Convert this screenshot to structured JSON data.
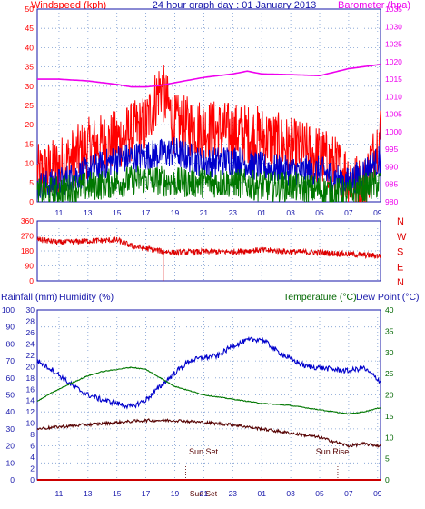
{
  "header": {
    "wind_label": "Windspeed (kph)",
    "title": "24 hour graph day : 01 January 2013",
    "baro_label": "Barometer (hpa)"
  },
  "bottom_labels": {
    "rain": "Rainfall (mm)",
    "humidity": "Humidity (%)",
    "temp": "Temperature (°C)",
    "dew": "Dew Point (°C)"
  },
  "annotations": {
    "sunset": "Sun Set",
    "sunrise": "Sun Rise",
    "sunset_short": "Sun Set"
  },
  "colors": {
    "wind": "#ff0000",
    "gust_blue": "#0000cc",
    "avg_green": "#007700",
    "baro": "#ee00ee",
    "dir": "#dd0000",
    "humidity": "#0000cc",
    "temp": "#007700",
    "dew": "#550000",
    "rain": "#cc0000",
    "axis_blue": "#1515aa",
    "axis_green": "#006600"
  },
  "chart_data": [
    {
      "type": "line",
      "id": "wind-baro",
      "title": "24 hour graph day : 01 January 2013",
      "x_ticks": [
        "11",
        "13",
        "15",
        "17",
        "19",
        "21",
        "23",
        "01",
        "03",
        "05",
        "07",
        "09"
      ],
      "y_left": {
        "label": "Windspeed (kph)",
        "ticks": [
          0,
          5,
          10,
          15,
          20,
          25,
          30,
          35,
          40,
          45,
          50
        ],
        "range": [
          0,
          50
        ]
      },
      "y_right": {
        "label": "Barometer (hpa)",
        "ticks": [
          980,
          985,
          990,
          995,
          1000,
          1005,
          1010,
          1015,
          1020,
          1025,
          1030,
          1035
        ],
        "range": [
          980,
          1035
        ]
      },
      "grid": true,
      "series": [
        {
          "name": "Windspeed (kph)",
          "color": "#ff0000",
          "x": [
            9.5,
            11,
            13,
            15,
            17,
            18,
            19,
            21,
            23,
            25,
            27,
            29,
            31,
            32,
            33.2
          ],
          "values": [
            7,
            9,
            14,
            16,
            20,
            30,
            20,
            19,
            18,
            17,
            14,
            12,
            7,
            3,
            18
          ],
          "noise": 8
        },
        {
          "color": "#0000cc",
          "x": [
            9.5,
            11,
            13,
            15,
            17,
            19,
            21,
            23,
            25,
            27,
            29,
            31,
            33.2
          ],
          "values": [
            4,
            5,
            8,
            11,
            12,
            13,
            10,
            11,
            9,
            8,
            8,
            5,
            11
          ],
          "noise": 4
        },
        {
          "color": "#007700",
          "x": [
            9.5,
            11,
            13,
            15,
            17,
            19,
            21,
            23,
            25,
            27,
            29,
            31,
            33.2
          ],
          "values": [
            2,
            3,
            4,
            5,
            6,
            5,
            5,
            5,
            4,
            4,
            3,
            2,
            5
          ],
          "noise": 4
        },
        {
          "name": "Barometer (hpa)",
          "color": "#ee00ee",
          "axis": "right",
          "x": [
            9.5,
            11,
            13,
            15,
            16,
            17,
            18,
            19,
            21,
            23,
            24,
            25,
            27,
            29,
            31,
            33.2
          ],
          "values": [
            1015,
            1015,
            1014.5,
            1013.5,
            1012.8,
            1012.8,
            1013.2,
            1014,
            1015.5,
            1016.5,
            1017.3,
            1016.5,
            1016.3,
            1016,
            1018,
            1019.2
          ],
          "noise": 0
        }
      ]
    },
    {
      "type": "scatter",
      "id": "wind-direction",
      "x_ticks": [
        "11",
        "13",
        "15",
        "17",
        "19",
        "21",
        "23",
        "01",
        "03",
        "05",
        "07",
        "09"
      ],
      "y_left": {
        "ticks": [
          0,
          90,
          180,
          270,
          360
        ],
        "range": [
          0,
          360
        ]
      },
      "y_right_labels": [
        "N",
        "W",
        "S",
        "E",
        "N"
      ],
      "grid": true,
      "series": [
        {
          "color": "#dd0000",
          "x": [
            9.5,
            11,
            13,
            15,
            16,
            17,
            18,
            19,
            21,
            23,
            25,
            27,
            29,
            31,
            33.2
          ],
          "values": [
            250,
            230,
            240,
            245,
            210,
            195,
            180,
            170,
            175,
            175,
            185,
            175,
            170,
            160,
            150
          ],
          "noise": 18
        }
      ],
      "spike": {
        "x": 18.2,
        "to": 0
      }
    },
    {
      "type": "line",
      "id": "temp-humidity-rain",
      "x_ticks": [
        "11",
        "13",
        "15",
        "17",
        "19",
        "21",
        "23",
        "01",
        "03",
        "05",
        "07",
        "09"
      ],
      "y_humidity": {
        "label": "Humidity (%)",
        "ticks": [
          0,
          10,
          20,
          30,
          40,
          50,
          60,
          70,
          80,
          90,
          100
        ],
        "range": [
          0,
          100
        ]
      },
      "y_rain": {
        "label": "Rainfall (mm)",
        "ticks": [
          0,
          2,
          4,
          6,
          8,
          10,
          12,
          14,
          16,
          18,
          20,
          22,
          24,
          26,
          28,
          30
        ],
        "range": [
          0,
          30
        ]
      },
      "y_temp": {
        "label": "Temperature (°C)",
        "ticks": [
          0,
          5,
          10,
          15,
          20,
          25,
          30,
          35,
          40
        ],
        "range": [
          0,
          40
        ]
      },
      "grid": true,
      "series": [
        {
          "name": "Humidity (%)",
          "color": "#0000cc",
          "x": [
            9.5,
            10.5,
            12,
            13,
            14,
            15,
            16,
            17,
            18,
            19,
            20,
            21,
            22,
            23,
            24,
            25,
            26,
            27,
            28,
            29,
            30,
            31,
            32,
            33.2
          ],
          "values": [
            70,
            65,
            55,
            50,
            47,
            45,
            43,
            47,
            55,
            63,
            70,
            72,
            73,
            79,
            82,
            83,
            76,
            71,
            67,
            66,
            65,
            64,
            66,
            58
          ],
          "noise": 1.6
        },
        {
          "name": "Temperature (°C)",
          "color": "#007700",
          "x": [
            9.5,
            10.5,
            12,
            13,
            14,
            15,
            16,
            17,
            18,
            19,
            20,
            21,
            22,
            23,
            25,
            27,
            29,
            31,
            32,
            33.2
          ],
          "values": [
            18.5,
            20.5,
            23,
            24.5,
            25.5,
            26,
            26.5,
            26,
            24,
            22,
            21,
            20,
            19.5,
            19,
            18,
            17.5,
            16.5,
            15.5,
            16,
            17
          ],
          "noise": 0.1
        },
        {
          "name": "Dew Point (°C)",
          "color": "#550000",
          "x": [
            9.5,
            11,
            13,
            15,
            17,
            19,
            21,
            23,
            25,
            27,
            29,
            31,
            32,
            33.2
          ],
          "values": [
            12,
            12.5,
            13,
            13.5,
            14,
            14,
            13.5,
            13,
            12,
            11,
            10,
            8,
            8.5,
            8
          ],
          "noise": 0.35
        },
        {
          "name": "Rainfall (mm)",
          "color": "#cc0000",
          "x": [
            9.5,
            33.2
          ],
          "values": [
            0,
            0
          ],
          "noise": 0
        }
      ],
      "events": [
        {
          "label": "Sun Set",
          "x": 19.75
        },
        {
          "label": "Sun Rise",
          "x": 30.25
        }
      ]
    }
  ]
}
